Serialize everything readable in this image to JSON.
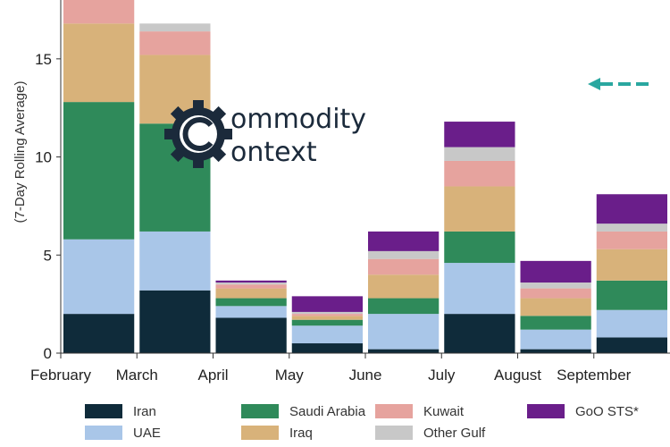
{
  "chart_data": {
    "type": "bar",
    "stacked": true,
    "ylabel_lines": [
      "",
      "(7-Day Rolling Average)"
    ],
    "ylim": [
      0,
      18
    ],
    "yticks": [
      0,
      5,
      10,
      15
    ],
    "x_months": [
      "February",
      "March",
      "April",
      "May",
      "June",
      "July",
      "August",
      "September"
    ],
    "grid": false,
    "legend_position": "bottom",
    "series": [
      {
        "name": "Iran",
        "color": "#0f2b3a",
        "values": [
          2.0,
          3.2,
          1.8,
          0.5,
          0.2,
          2.0,
          0.2,
          0.8
        ]
      },
      {
        "name": "UAE",
        "color": "#a9c6e8",
        "values": [
          3.8,
          3.0,
          0.6,
          0.9,
          1.8,
          2.6,
          1.0,
          1.4
        ]
      },
      {
        "name": "Saudi Arabia",
        "color": "#2f8a5a",
        "values": [
          7.0,
          5.5,
          0.4,
          0.3,
          0.8,
          1.6,
          0.7,
          1.5
        ]
      },
      {
        "name": "Iraq",
        "color": "#d8b27a",
        "values": [
          4.0,
          3.5,
          0.5,
          0.2,
          1.2,
          2.3,
          0.9,
          1.6
        ]
      },
      {
        "name": "Kuwait",
        "color": "#e6a39e",
        "values": [
          1.5,
          1.2,
          0.2,
          0.1,
          0.8,
          1.3,
          0.5,
          0.9
        ]
      },
      {
        "name": "Other Gulf",
        "color": "#c8c8c8",
        "values": [
          0.5,
          0.4,
          0.1,
          0.1,
          0.4,
          0.7,
          0.3,
          0.4
        ]
      },
      {
        "name": "GoO STS*",
        "color": "#6a1e8a",
        "values": [
          0.0,
          0.0,
          0.1,
          0.8,
          1.0,
          1.3,
          1.1,
          1.5
        ]
      }
    ]
  },
  "logo": {
    "line1": "ommodity",
    "line2": "ontext"
  },
  "colors": {
    "arrow": "#2aa7a0"
  }
}
